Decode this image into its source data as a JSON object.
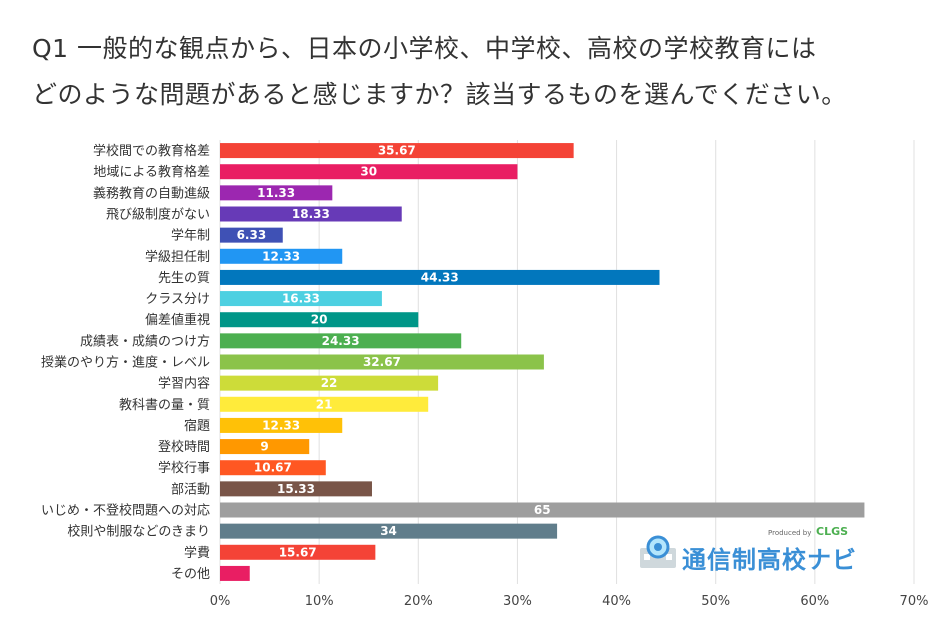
{
  "title": {
    "line1": "Q1 一般的な観点から、日本の小学校、中学校、高校の学校教育には",
    "line2": "どのような問題があると感じますか？該当するものを選んでください。"
  },
  "chart_data": {
    "type": "bar",
    "orientation": "horizontal",
    "categories": [
      "学校間での教育格差",
      "地域による教育格差",
      "義務教育の自動進級",
      "飛び級制度がない",
      "学年制",
      "学級担任制",
      "先生の質",
      "クラス分け",
      "偏差値重視",
      "成績表・成績のつけ方",
      "授業のやり方・進度・レベル",
      "学習内容",
      "教科書の量・質",
      "宿題",
      "登校時間",
      "学校行事",
      "部活動",
      "いじめ・不登校問題への対応",
      "校則や制服などのきまり",
      "学費",
      "その他"
    ],
    "values": [
      35.67,
      30,
      11.33,
      18.33,
      6.33,
      12.33,
      44.33,
      16.33,
      20,
      24.33,
      32.67,
      22,
      21,
      12.33,
      9,
      10.67,
      15.33,
      65,
      34,
      15.67,
      3
    ],
    "value_labels": [
      "35.67",
      "30",
      "11.33",
      "18.33",
      "6.33",
      "12.33",
      "44.33",
      "16.33",
      "20",
      "24.33",
      "32.67",
      "22",
      "21",
      "12.33",
      "9",
      "10.67",
      "15.33",
      "65",
      "34",
      "15.67",
      ""
    ],
    "colors": [
      "#f44336",
      "#e91e63",
      "#9c27b0",
      "#673ab7",
      "#3f51b5",
      "#2196f3",
      "#0277bd",
      "#4dd0e1",
      "#009688",
      "#4caf50",
      "#8bc34a",
      "#cddc39",
      "#ffeb3b",
      "#ffc107",
      "#ff9800",
      "#ff5722",
      "#795548",
      "#9e9e9e",
      "#607d8b",
      "#f44336",
      "#e91e63"
    ],
    "xlim": [
      0,
      70
    ],
    "xticks": [
      "0%",
      "10%",
      "20%",
      "30%",
      "40%",
      "50%",
      "60%",
      "70%"
    ],
    "xtick_values": [
      0,
      10,
      20,
      30,
      40,
      50,
      60,
      70
    ],
    "grid": true
  },
  "logo": {
    "produced_by": "Produced by",
    "brand": "CLGS",
    "name": "通信制高校ナビ",
    "accent": "#3a8fd6"
  }
}
